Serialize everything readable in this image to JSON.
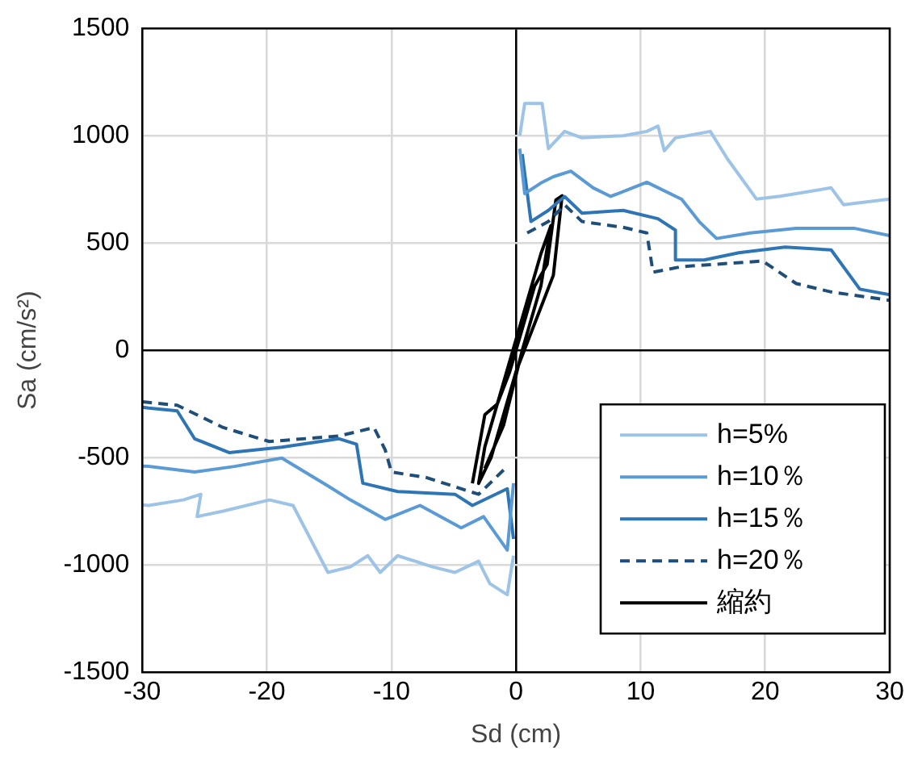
{
  "chart_data": {
    "type": "line",
    "xlabel": "Sd (cm)",
    "ylabel": "Sa (cm/s²)",
    "xlim": [
      -30,
      30
    ],
    "xticks": [
      -30,
      -20,
      -10,
      0,
      10,
      20,
      30
    ],
    "ylim": [
      -1500,
      1500
    ],
    "yticks": [
      -1500,
      -1000,
      -500,
      0,
      500,
      1000,
      1500
    ],
    "grid": true,
    "legend": "bottom right",
    "marker": "none",
    "series": [
      {
        "name": "h=5%",
        "color": "#9dc3e6",
        "line_style": "solid",
        "x": [
          -30,
          -29.5,
          -26.7,
          -25.3,
          -25.6,
          -23.5,
          -19.8,
          -17.9,
          -15.1,
          -13.3,
          -11.9,
          -10.9,
          -9.5,
          -6.7,
          -4.9,
          -3,
          -2.1,
          -0.7,
          -0.2,
          null,
          0.3,
          0.7,
          2.1,
          2.6,
          3.9,
          5.3,
          8.6,
          10.5,
          11.4,
          11.9,
          12.8,
          15.6,
          17,
          19.3,
          21.2,
          25.3,
          26.3,
          30
        ],
        "values": [
          -720,
          -723,
          -697,
          -671,
          -775,
          -749,
          -697,
          -723,
          -1035,
          -1009,
          -957,
          -1035,
          -957,
          -1009,
          -1035,
          -983,
          -1087,
          -1139,
          -957,
          null,
          1000,
          1150,
          1150,
          940,
          1020,
          990,
          1000,
          1020,
          1045,
          930,
          990,
          1020,
          890,
          705,
          718,
          757,
          678,
          705
        ]
      },
      {
        "name": "h=10％",
        "color": "#5b9bd5",
        "line_style": "solid",
        "x": [
          -30,
          -29.5,
          -25.8,
          -22.6,
          -18.8,
          -15.1,
          -13.3,
          -10.5,
          -7.7,
          -4.4,
          -2.6,
          -0.7,
          -0.2,
          null,
          0.3,
          0.7,
          2.1,
          3,
          4.4,
          6.2,
          7.6,
          10.5,
          13.3,
          14.7,
          16.1,
          18.8,
          22.5,
          27.2,
          30
        ],
        "values": [
          -540,
          -541,
          -567,
          -541,
          -502,
          -632,
          -697,
          -788,
          -723,
          -827,
          -775,
          -931,
          -619,
          null,
          940,
          730,
          783,
          809,
          835,
          757,
          717,
          783,
          704,
          600,
          521,
          547,
          568,
          568,
          534
        ]
      },
      {
        "name": "h=15％",
        "color": "#2e75b6",
        "line_style": "solid",
        "x": [
          -30,
          -29.5,
          -27.2,
          -25.8,
          -23,
          -18.8,
          -14.2,
          -12.8,
          -12.3,
          -9.5,
          -4.9,
          -3.5,
          -0.7,
          -0.2,
          null,
          0.5,
          1.2,
          2.6,
          3.9,
          5.3,
          8.6,
          11.4,
          12.8,
          12.8,
          15.1,
          17.9,
          21.6,
          25.3,
          27.6,
          30
        ],
        "values": [
          -265,
          -269,
          -282,
          -412,
          -477,
          -451,
          -412,
          -438,
          -619,
          -658,
          -671,
          -723,
          -645,
          -879,
          null,
          914,
          600,
          652,
          717,
          639,
          652,
          613,
          560,
          421,
          421,
          455,
          481,
          468,
          285,
          259
        ]
      },
      {
        "name": "h=20％",
        "color": "#1f4e79",
        "line_style": "dashed",
        "x": [
          -30,
          -29.5,
          -27.2,
          -23.5,
          -19.8,
          -14.2,
          -11.4,
          -10.5,
          -10,
          -7.2,
          -3,
          -0.7,
          null,
          0.9,
          2.6,
          3.9,
          5.3,
          8.6,
          10.5,
          11,
          13.3,
          19.8,
          22.5,
          25.3,
          30
        ],
        "values": [
          -240,
          -243,
          -256,
          -360,
          -425,
          -399,
          -360,
          -464,
          -567,
          -593,
          -671,
          -541,
          null,
          547,
          600,
          678,
          600,
          573,
          547,
          364,
          390,
          416,
          311,
          272,
          233
        ]
      },
      {
        "name": "縮約",
        "color": "#000000",
        "line_style": "solid",
        "x": [
          -3.5,
          -2.5,
          -1.5,
          -0.5,
          0.5,
          1.5,
          2.5,
          3.2,
          3.7,
          3,
          2,
          1,
          0,
          -1,
          -2,
          -3,
          -2.5,
          -1,
          0.5,
          2,
          2.8,
          2,
          0.5,
          -1,
          -2.5
        ],
        "values": [
          -620,
          -300,
          -250,
          -100,
          100,
          300,
          400,
          700,
          720,
          350,
          200,
          50,
          -100,
          -300,
          -500,
          -620,
          -450,
          -150,
          150,
          450,
          580,
          300,
          0,
          -350,
          -550
        ]
      }
    ]
  }
}
